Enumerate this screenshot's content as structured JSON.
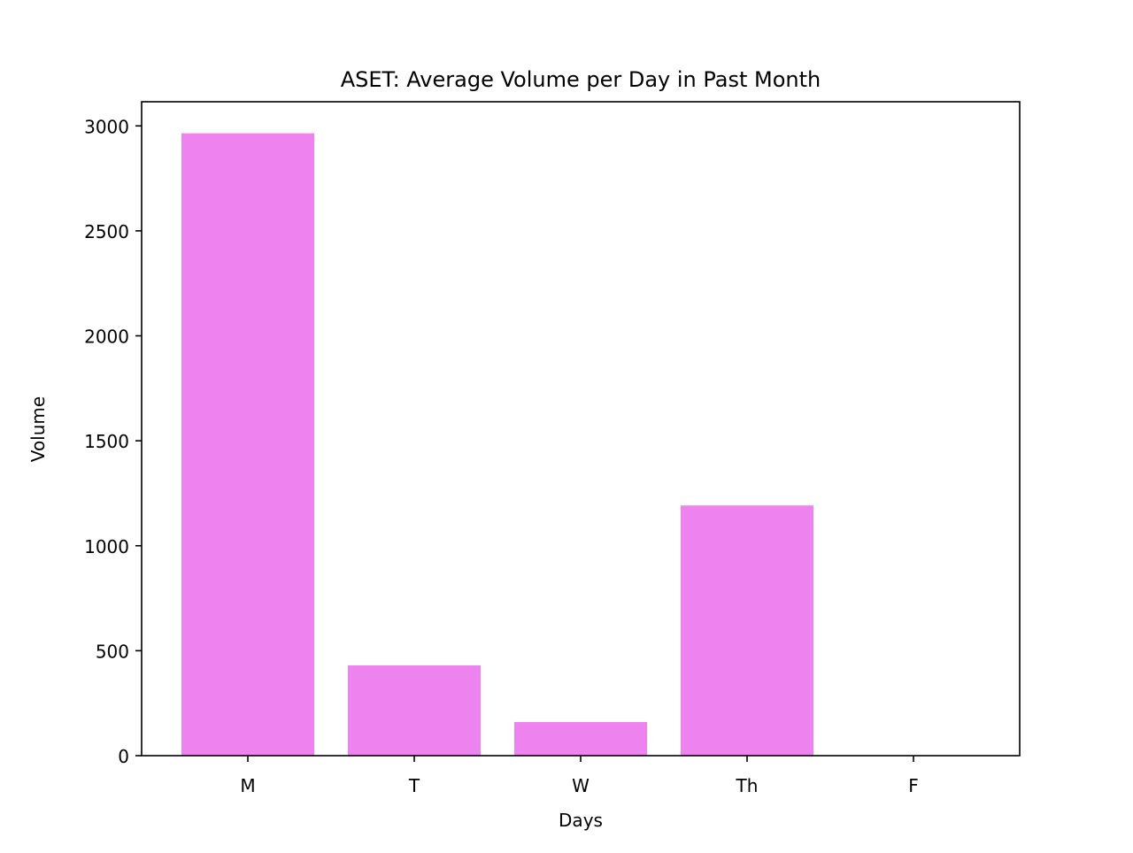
{
  "chart_data": {
    "type": "bar",
    "title": "ASET: Average Volume per Day in Past Month",
    "xlabel": "Days",
    "ylabel": "Volume",
    "categories": [
      "M",
      "T",
      "W",
      "Th",
      "F"
    ],
    "values": [
      2965,
      430,
      160,
      1192,
      0
    ],
    "ylim": [
      0,
      3115
    ],
    "yticks": [
      0,
      500,
      1000,
      1500,
      2000,
      2500,
      3000
    ],
    "bar_color": "#ee82ee",
    "grid": false,
    "legend": "none"
  }
}
